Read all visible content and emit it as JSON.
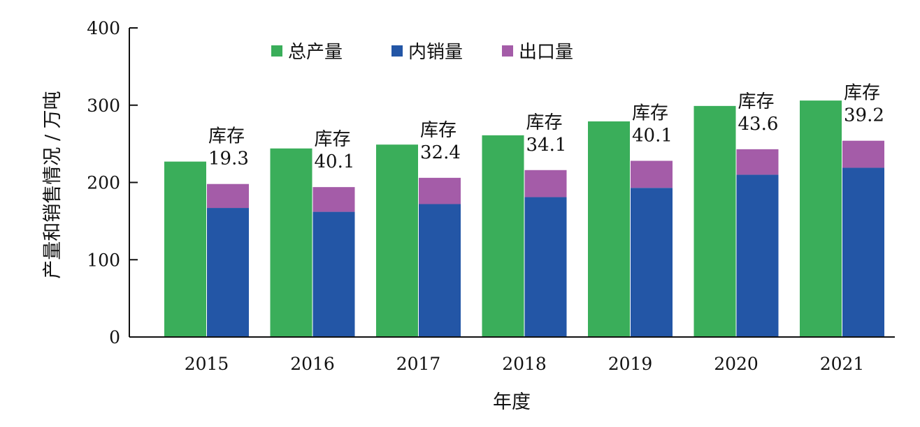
{
  "chart_data": {
    "type": "bar",
    "title": "",
    "xlabel": "年度",
    "ylabel": "产量和销售情况 / 万吨",
    "ylim": [
      0,
      400
    ],
    "yticks": [
      "0",
      "100",
      "200",
      "300",
      "400"
    ],
    "categories": [
      "2015",
      "2016",
      "2017",
      "2018",
      "2019",
      "2020",
      "2021"
    ],
    "series": [
      {
        "name": "总产量",
        "color": "#3aae5a",
        "values": [
          227,
          244,
          249,
          261,
          279,
          299,
          306
        ]
      },
      {
        "name": "内销量",
        "color": "#2356a6",
        "values": [
          167,
          162,
          172,
          181,
          193,
          210,
          219
        ]
      },
      {
        "name": "出口量",
        "color": "#a45ca8",
        "values": [
          31,
          32,
          34,
          35,
          35,
          33,
          35
        ]
      }
    ],
    "stacked_groups": [
      [
        "内销量",
        "出口量"
      ]
    ],
    "legend_position": "top",
    "annotations": [
      {
        "category": "2015",
        "label": "库存",
        "value": "19.3"
      },
      {
        "category": "2016",
        "label": "库存",
        "value": "40.1"
      },
      {
        "category": "2017",
        "label": "库存",
        "value": "32.4"
      },
      {
        "category": "2018",
        "label": "库存",
        "value": "34.1"
      },
      {
        "category": "2019",
        "label": "库存",
        "value": "40.1"
      },
      {
        "category": "2020",
        "label": "库存",
        "value": "43.6"
      },
      {
        "category": "2021",
        "label": "库存",
        "value": "39.2"
      }
    ],
    "grid": false
  }
}
